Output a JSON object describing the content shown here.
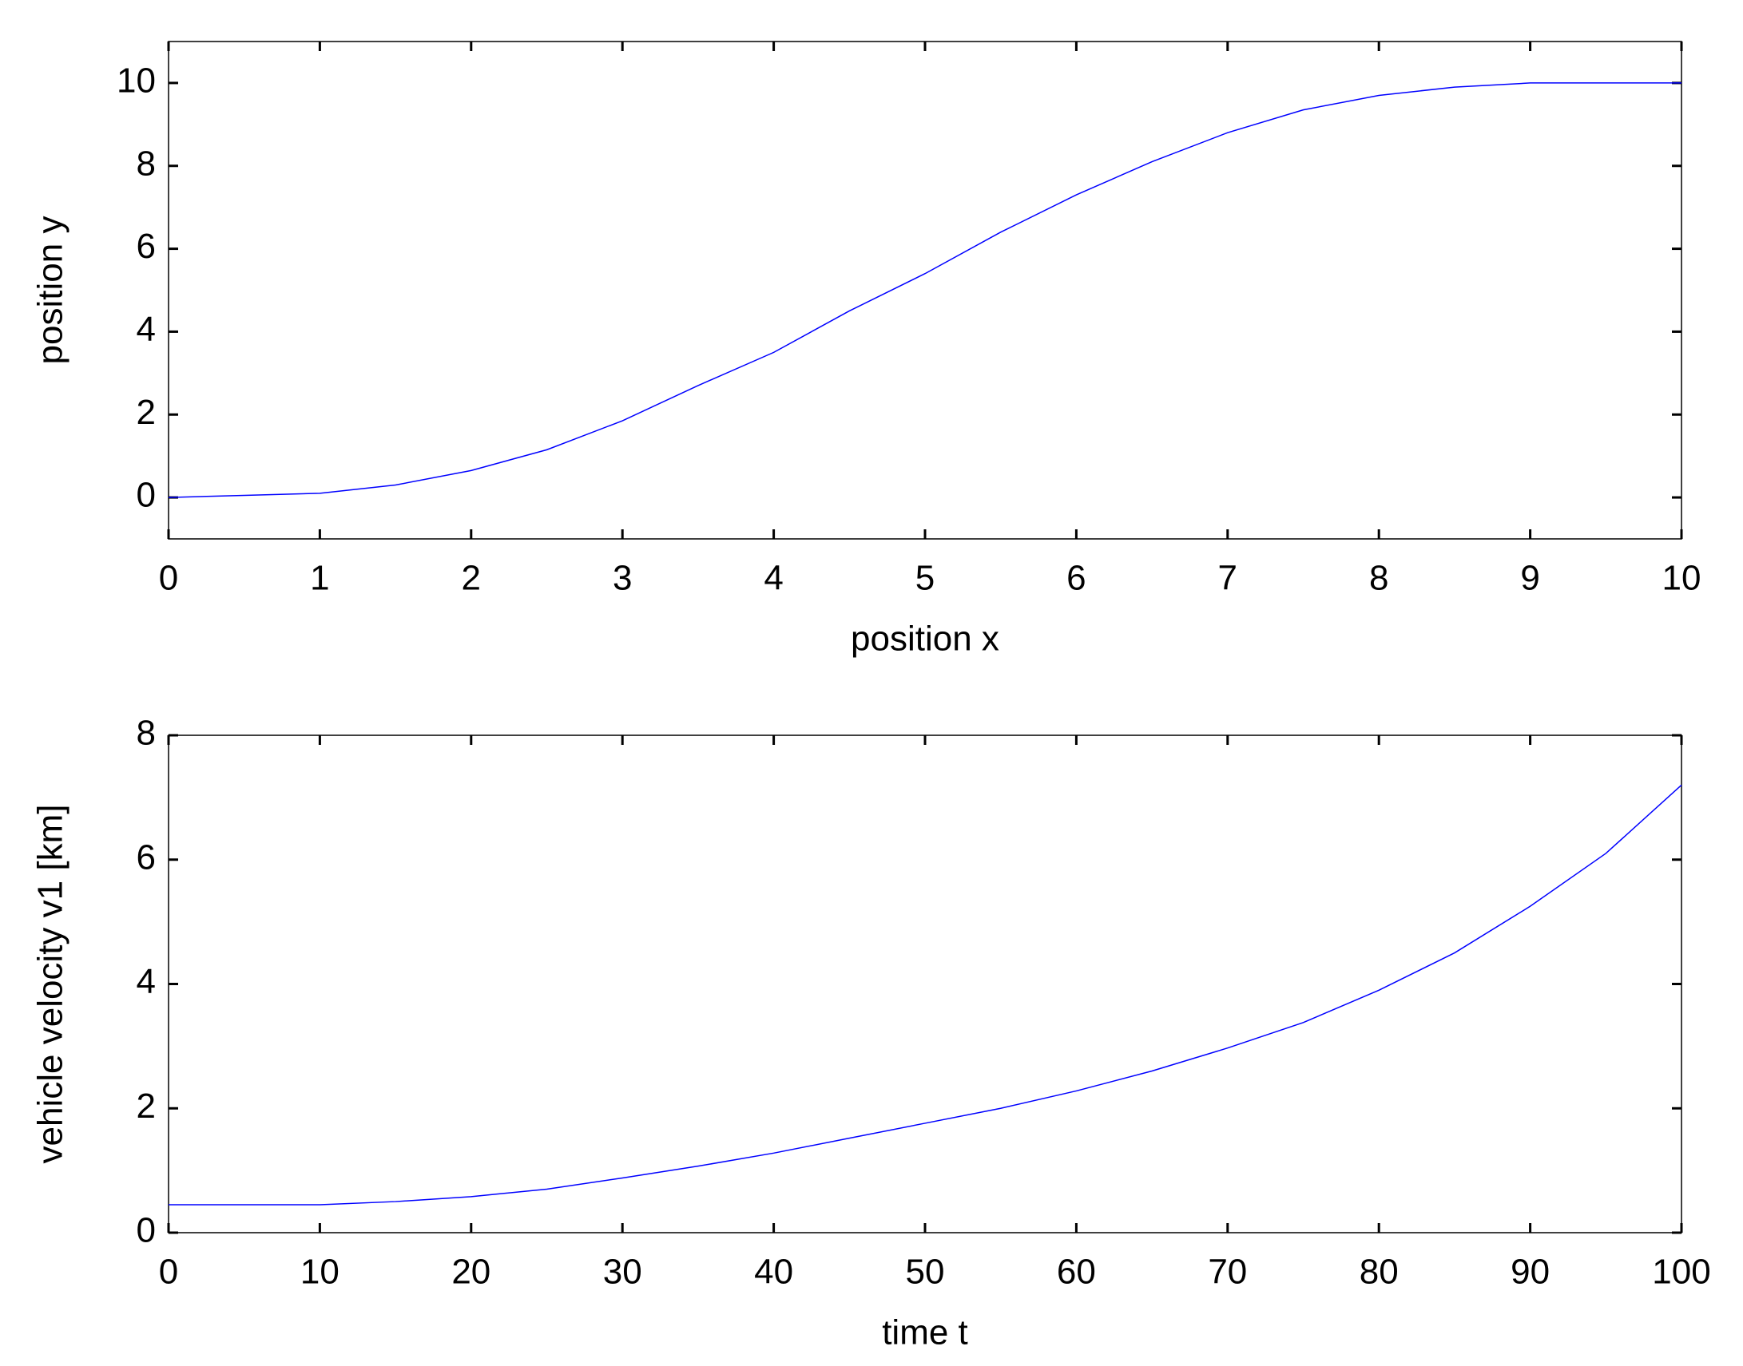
{
  "chart_data": [
    {
      "type": "line",
      "xlabel": "position x",
      "ylabel": "position y",
      "xlim": [
        0,
        10
      ],
      "ylim": [
        -1,
        11
      ],
      "xticks": [
        0,
        1,
        2,
        3,
        4,
        5,
        6,
        7,
        8,
        9,
        10
      ],
      "yticks": [
        0,
        2,
        4,
        6,
        8,
        10
      ],
      "x": [
        0,
        0.5,
        1,
        1.5,
        2,
        2.5,
        3,
        3.5,
        4,
        4.5,
        5,
        5.5,
        6,
        6.5,
        7,
        7.5,
        8,
        8.5,
        9,
        9.5,
        10
      ],
      "series": [
        {
          "color": "#0000ff",
          "values": [
            0,
            0.05,
            0.1,
            0.3,
            0.65,
            1.15,
            1.85,
            2.7,
            3.5,
            4.5,
            5.4,
            6.4,
            7.3,
            8.1,
            8.8,
            9.35,
            9.7,
            9.9,
            10,
            10,
            10
          ]
        }
      ]
    },
    {
      "type": "line",
      "xlabel": "time t",
      "ylabel": "vehicle velocity v1 [km]",
      "xlim": [
        0,
        100
      ],
      "ylim": [
        0,
        8
      ],
      "xticks": [
        0,
        10,
        20,
        30,
        40,
        50,
        60,
        70,
        80,
        90,
        100
      ],
      "yticks": [
        0,
        2,
        4,
        6,
        8
      ],
      "x": [
        0,
        5,
        10,
        15,
        20,
        25,
        30,
        35,
        40,
        45,
        50,
        55,
        60,
        65,
        70,
        75,
        80,
        85,
        90,
        95,
        100
      ],
      "series": [
        {
          "color": "#0000ff",
          "values": [
            0.45,
            0.45,
            0.45,
            0.5,
            0.58,
            0.7,
            0.88,
            1.07,
            1.28,
            1.52,
            1.76,
            2.0,
            2.28,
            2.6,
            2.97,
            3.38,
            3.9,
            4.5,
            5.25,
            6.1,
            7.2
          ]
        }
      ]
    }
  ]
}
